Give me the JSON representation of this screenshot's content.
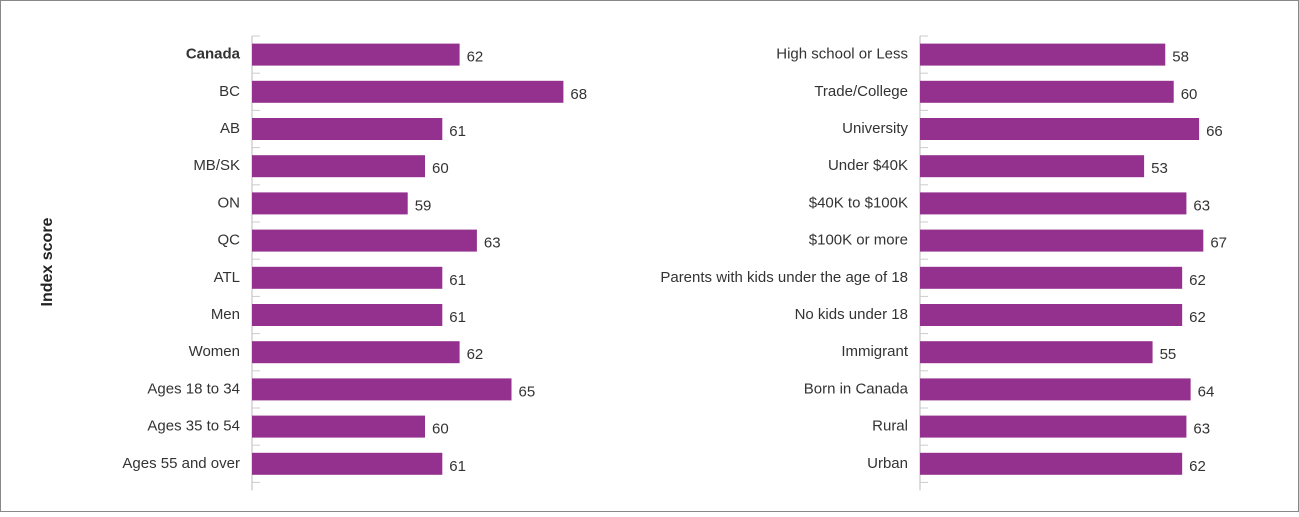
{
  "chart_data": [
    {
      "type": "barh",
      "ylabel": "Index score",
      "color": "#94318f",
      "bold_index": 0,
      "categories": [
        "Canada",
        "BC",
        "AB",
        "MB/SK",
        "ON",
        "QC",
        "ATL",
        "Men",
        "Women",
        "Ages 18 to 34",
        "Ages 35 to 54",
        "Ages 55 and over"
      ],
      "values": [
        62,
        68,
        61,
        60,
        59,
        63,
        61,
        61,
        62,
        65,
        60,
        61
      ],
      "xlim": [
        50,
        70
      ]
    },
    {
      "type": "barh",
      "color": "#94318f",
      "categories": [
        "High school or Less",
        "Trade/College",
        "University",
        "Under $40K",
        "$40K to $100K",
        "$100K or more",
        "Parents with kids under the age of 18",
        "No kids under 18",
        "Immigrant",
        "Born in Canada",
        "Rural",
        "Urban"
      ],
      "values": [
        58,
        60,
        66,
        53,
        63,
        67,
        62,
        62,
        55,
        64,
        63,
        62
      ],
      "xlim": [
        0,
        70
      ]
    }
  ]
}
